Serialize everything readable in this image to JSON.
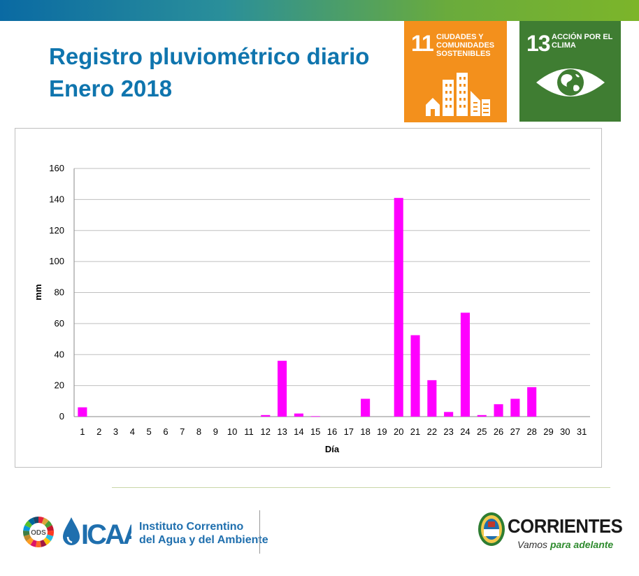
{
  "header": {
    "title": "Registro pluviométrico diario",
    "subtitle": "Enero 2018"
  },
  "sdg_badges": [
    {
      "number": "11",
      "label": "CIUDADES Y COMUNIDADES SOSTENIBLES",
      "color": "#f3901c",
      "icon": "city-buildings-icon"
    },
    {
      "number": "13",
      "label": "ACCIÓN POR EL CLIMA",
      "color": "#3f7d32",
      "icon": "eye-globe-icon"
    }
  ],
  "chart_data": {
    "type": "bar",
    "xlabel": "Día",
    "ylabel": "mm",
    "ylim": [
      0,
      160
    ],
    "yticks": [
      0,
      20,
      40,
      60,
      80,
      100,
      120,
      140,
      160
    ],
    "grid": true,
    "bar_color": "#ff00ff",
    "categories": [
      "1",
      "2",
      "3",
      "4",
      "5",
      "6",
      "7",
      "8",
      "9",
      "10",
      "11",
      "12",
      "13",
      "14",
      "15",
      "16",
      "17",
      "18",
      "19",
      "20",
      "21",
      "22",
      "23",
      "24",
      "25",
      "26",
      "27",
      "28",
      "29",
      "30",
      "31"
    ],
    "values": [
      6,
      0,
      0,
      0,
      0,
      0,
      0,
      0,
      0,
      0,
      0,
      1,
      36,
      2,
      0.3,
      0,
      0,
      11.5,
      0,
      141,
      52.5,
      23.5,
      3,
      67,
      1,
      8,
      11.5,
      19,
      0,
      0,
      0
    ]
  },
  "footer": {
    "ods_label": "ODS",
    "icaa_brand": "ICAA",
    "institute_line1": "Instituto Correntino",
    "institute_line2": "del Agua y del Ambiente",
    "province_name": "CORRIENTES",
    "slogan_part1": "Vamos ",
    "slogan_part2": "para adelante"
  }
}
